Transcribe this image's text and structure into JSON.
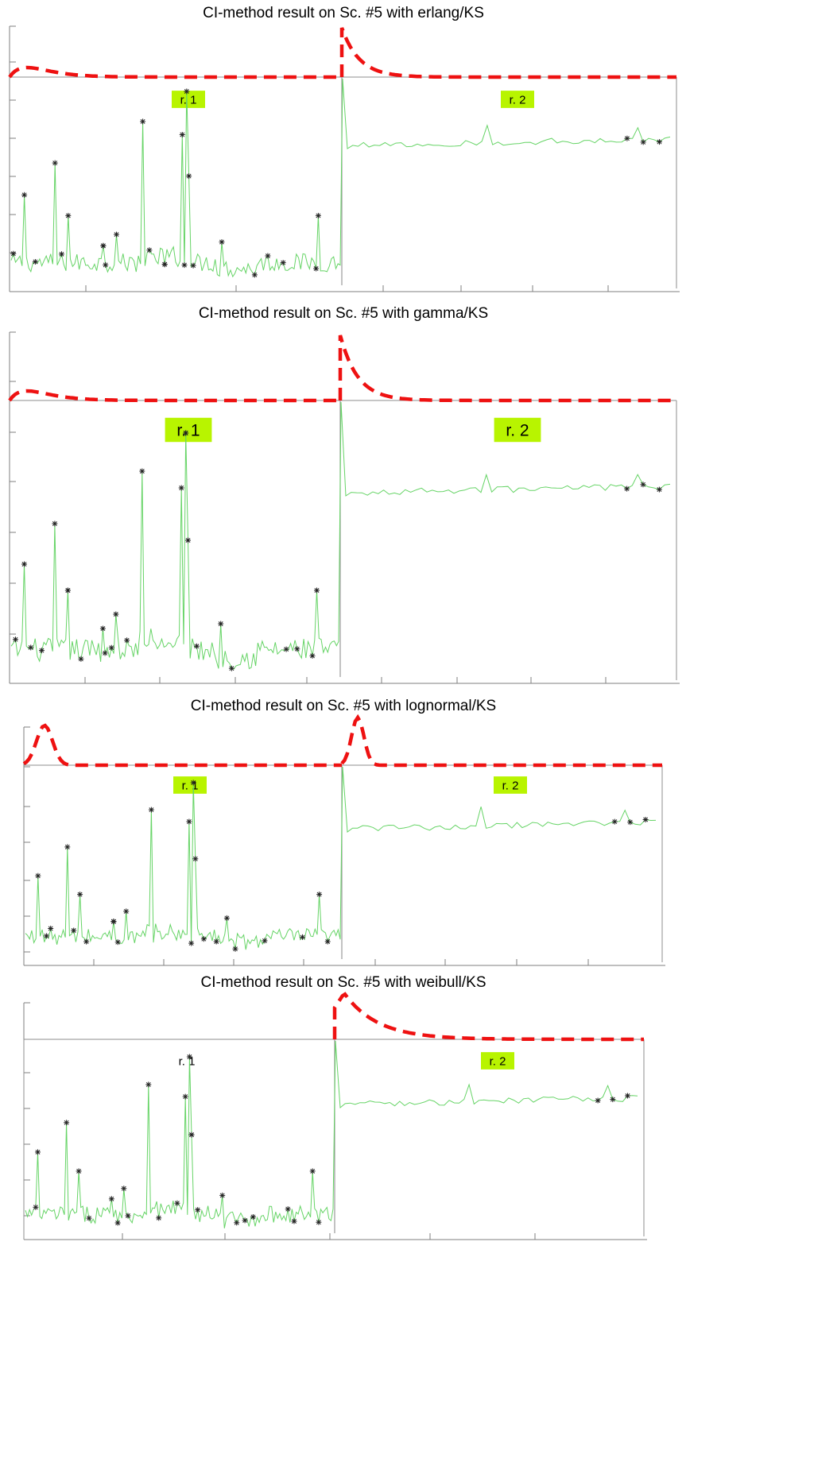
{
  "colors": {
    "signal": "#66d466",
    "pdf_curve": "#ee1111",
    "marker": "#222222",
    "label_background": "#b8f400",
    "axis": "#7f7f7f"
  },
  "chart_data": [
    {
      "type": "line",
      "title": "CI-method result on Sc. #5 with erlang/KS",
      "distribution": "erlang",
      "regions": [
        {
          "label": "r. 1"
        },
        {
          "label": "r. 2"
        }
      ],
      "series": [
        {
          "style": "solid thin green line",
          "marker": "asterisk at detected change points"
        },
        {
          "style": "thick dashed red line (fitted density)"
        }
      ],
      "axis_labels_shown": false,
      "grid": false
    },
    {
      "type": "line",
      "title": "CI-method result on Sc. #5 with gamma/KS",
      "distribution": "gamma",
      "regions": [
        {
          "label": "r. 1"
        },
        {
          "label": "r. 2"
        }
      ],
      "series": [
        {
          "style": "solid thin green line",
          "marker": "asterisk at detected change points"
        },
        {
          "style": "thick dashed red line (fitted density)"
        }
      ],
      "axis_labels_shown": false,
      "grid": false
    },
    {
      "type": "line",
      "title": "CI-method result on Sc. #5 with lognormal/KS",
      "distribution": "lognormal",
      "regions": [
        {
          "label": "r. 1"
        },
        {
          "label": "r. 2"
        }
      ],
      "series": [
        {
          "style": "solid thin green line",
          "marker": "asterisk at detected change points"
        },
        {
          "style": "thick dashed red line (fitted density)"
        }
      ],
      "axis_labels_shown": false,
      "grid": false
    },
    {
      "type": "line",
      "title": "CI-method result on Sc. #5 with weibull/KS",
      "distribution": "weibull",
      "regions": [
        {
          "label": "r. 1"
        },
        {
          "label": "r. 2"
        }
      ],
      "series": [
        {
          "style": "solid thin green line",
          "marker": "asterisk at detected change points"
        },
        {
          "style": "thick dashed red line (fitted density)"
        }
      ],
      "axis_labels_shown": false,
      "grid": false
    }
  ]
}
